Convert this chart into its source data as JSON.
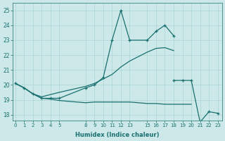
{
  "xlabel": "Humidex (Indice chaleur)",
  "background_color": "#cce8e8",
  "line_color": "#1a7070",
  "grid_color": "#aad4d4",
  "xtick_vals": [
    0,
    1,
    2,
    3,
    4,
    5,
    8,
    9,
    10,
    11,
    12,
    13,
    15,
    16,
    17,
    18,
    19,
    20,
    21,
    22,
    23
  ],
  "ytick_vals": [
    18,
    19,
    20,
    21,
    22,
    23,
    24,
    25
  ],
  "ylim": [
    17.6,
    25.5
  ],
  "xlim": [
    -0.3,
    23.5
  ],
  "series1_x": [
    0,
    1,
    2,
    3,
    4,
    5,
    8,
    9,
    10,
    11,
    12,
    13,
    15,
    16,
    17,
    18
  ],
  "series1_y": [
    20.1,
    19.8,
    19.4,
    19.1,
    19.1,
    19.1,
    19.8,
    20.0,
    20.5,
    23.0,
    25.0,
    23.0,
    23.0,
    23.6,
    24.0,
    23.3
  ],
  "series2_x": [
    0,
    1,
    2,
    3,
    4,
    5,
    8,
    9,
    10,
    11,
    12,
    13,
    15,
    16,
    17,
    18
  ],
  "series2_y": [
    20.1,
    19.8,
    19.4,
    19.2,
    19.35,
    19.5,
    19.9,
    20.1,
    20.4,
    20.7,
    21.2,
    21.6,
    22.2,
    22.45,
    22.5,
    22.3
  ],
  "series3_x": [
    0,
    1,
    2,
    3,
    4,
    5,
    8,
    9,
    10,
    11,
    12,
    13,
    15,
    16,
    17,
    18,
    19,
    20
  ],
  "series3_y": [
    20.1,
    19.8,
    19.4,
    19.1,
    19.05,
    18.95,
    18.8,
    18.85,
    18.85,
    18.85,
    18.85,
    18.85,
    18.75,
    18.75,
    18.7,
    18.7,
    18.7,
    18.7
  ],
  "series4_x": [
    18,
    19,
    20,
    21,
    22,
    23
  ],
  "series4_y": [
    20.3,
    20.3,
    20.3,
    17.5,
    18.2,
    18.1
  ]
}
